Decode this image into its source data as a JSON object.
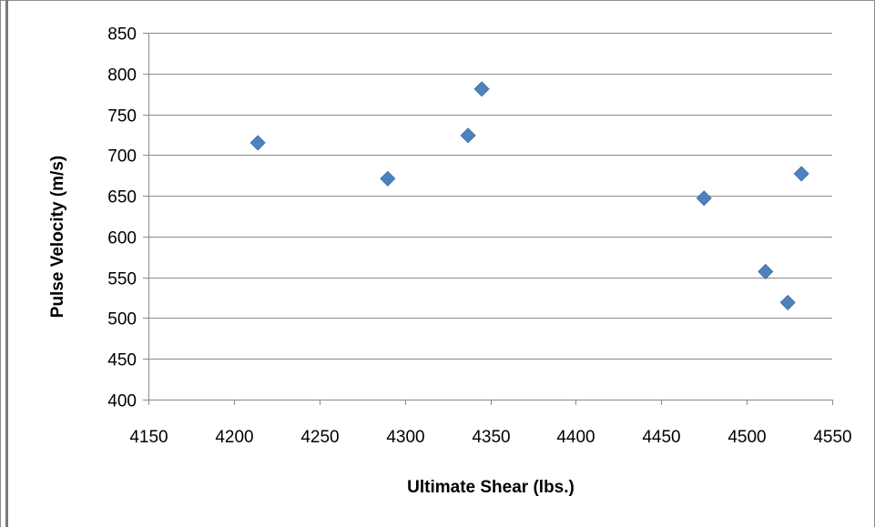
{
  "chart_data": {
    "type": "scatter",
    "title": "",
    "xlabel": "Ultimate Shear (lbs.)",
    "ylabel": "Pulse Velocity (m/s)",
    "xlim": [
      4150,
      4550
    ],
    "ylim": [
      400,
      850
    ],
    "xticks": [
      4150,
      4200,
      4250,
      4300,
      4350,
      4400,
      4450,
      4500,
      4550
    ],
    "yticks": [
      400,
      450,
      500,
      550,
      600,
      650,
      700,
      750,
      800,
      850
    ],
    "grid": "horizontal",
    "legend": "none",
    "marker": "diamond",
    "marker_color": "#4f81bd",
    "points": [
      {
        "x": 4214,
        "y": 715
      },
      {
        "x": 4290,
        "y": 671
      },
      {
        "x": 4337,
        "y": 724
      },
      {
        "x": 4345,
        "y": 781
      },
      {
        "x": 4475,
        "y": 647
      },
      {
        "x": 4511,
        "y": 557
      },
      {
        "x": 4524,
        "y": 519
      },
      {
        "x": 4532,
        "y": 677
      }
    ]
  }
}
